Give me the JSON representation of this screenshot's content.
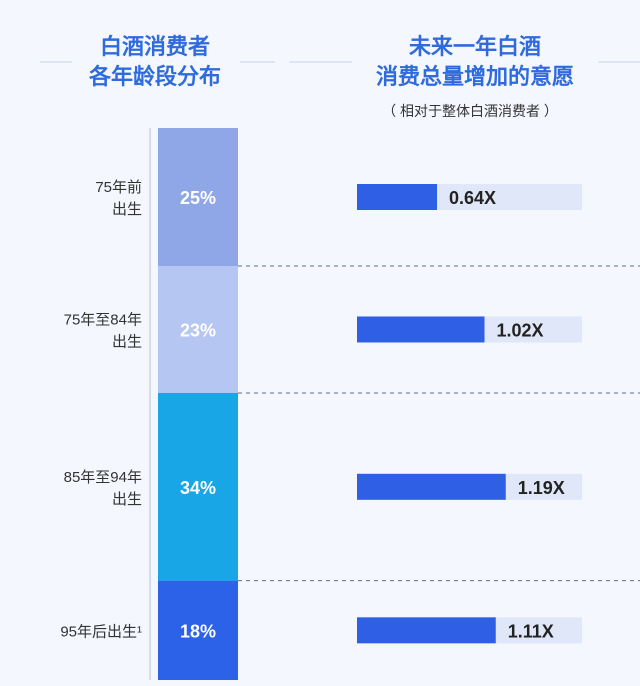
{
  "left_header": {
    "line1": "白酒消费者",
    "line2": "各年龄段分布"
  },
  "right_header": {
    "line1": "未来一年白酒",
    "line2": "消费总量增加的意愿",
    "subtitle": "（ 相对于整体白酒消费者 ）"
  },
  "colors": {
    "header_text": "#2f6bdc",
    "segments": [
      "#8fa7e6",
      "#b5c6f2",
      "#18a6e6",
      "#2b62e8"
    ],
    "bar": "#2f5fe4",
    "bar_track": "#dfe7f8",
    "label_text": "#333333",
    "value_text": "#222222"
  },
  "chart_data": [
    {
      "type": "bar",
      "title": "白酒消费者各年龄段分布",
      "categories": [
        "75年前出生",
        "75年至84年出生",
        "85年至94年出生",
        "95年后出生¹"
      ],
      "category_lines": [
        [
          "75年前",
          "出生"
        ],
        [
          "75年至84年",
          "出生"
        ],
        [
          "85年至94年",
          "出生"
        ],
        [
          "95年后出生¹"
        ]
      ],
      "values": [
        25,
        23,
        34,
        18
      ],
      "value_labels": [
        "25%",
        "23%",
        "34%",
        "18%"
      ],
      "unit": "%",
      "stacked": true
    },
    {
      "type": "bar",
      "title": "未来一年白酒消费总量增加的意愿（相对于整体白酒消费者）",
      "categories": [
        "75年前出生",
        "75年至84年出生",
        "85年至94年出生",
        "95年后出生¹"
      ],
      "values": [
        0.64,
        1.02,
        1.19,
        1.11
      ],
      "value_labels": [
        "0.64X",
        "1.02X",
        "1.19X",
        "1.11X"
      ],
      "unit": "X"
    }
  ]
}
